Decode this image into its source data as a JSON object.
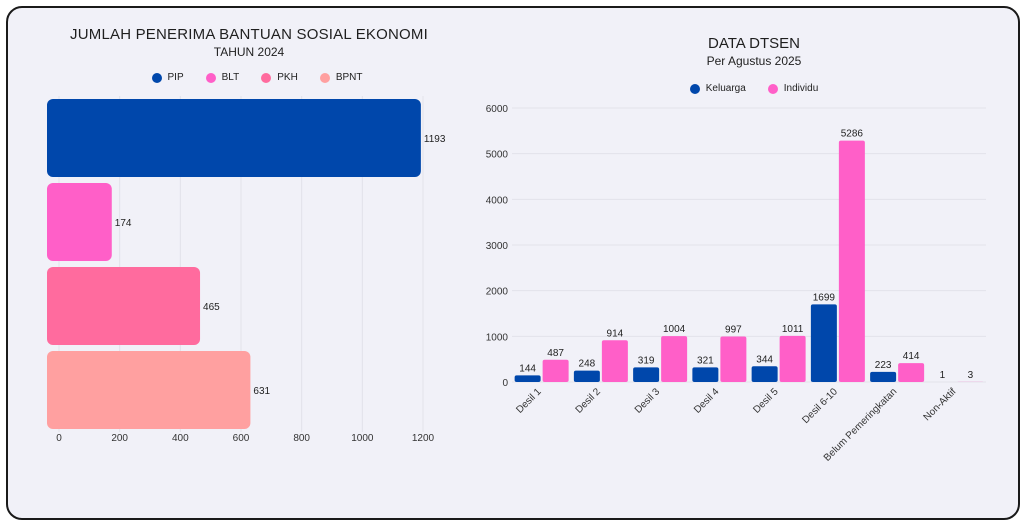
{
  "left_chart": {
    "title": "JUMLAH PENERIMA BANTUAN SOSIAL EKONOMI",
    "subtitle": "TAHUN 2024",
    "legend": [
      {
        "name": "PIP",
        "color": "#0047AB"
      },
      {
        "name": "BLT",
        "color": "#FF5FC8"
      },
      {
        "name": "PKH",
        "color": "#FF6B9E"
      },
      {
        "name": "BPNT",
        "color": "#FFA0A0"
      }
    ]
  },
  "right_chart": {
    "title": "DATA DTSEN",
    "subtitle": "Per Agustus 2025",
    "legend": [
      {
        "name": "Keluarga",
        "color": "#0047AB"
      },
      {
        "name": "Individu",
        "color": "#FF5FC8"
      }
    ]
  },
  "chart_data": [
    {
      "type": "bar",
      "orientation": "horizontal",
      "categories": [
        "PIP",
        "BLT",
        "PKH",
        "BPNT"
      ],
      "values": [
        1193,
        174,
        465,
        631
      ],
      "colors": [
        "#0047AB",
        "#FF5FC8",
        "#FF6B9E",
        "#FFA0A0"
      ],
      "xlim": [
        0,
        1200
      ],
      "xticks": [
        0,
        200,
        400,
        600,
        800,
        1000,
        1200
      ],
      "grid": true,
      "legend_position": "top"
    },
    {
      "type": "bar",
      "orientation": "vertical",
      "categories": [
        "Desil 1",
        "Desil 2",
        "Desil 3",
        "Desil 4",
        "Desil 5",
        "Desil 6-10",
        "Belum Pemeringkatan",
        "Non-Aktif"
      ],
      "series": [
        {
          "name": "Keluarga",
          "color": "#0047AB",
          "values": [
            144,
            248,
            319,
            321,
            344,
            1699,
            223,
            1
          ]
        },
        {
          "name": "Individu",
          "color": "#FF5FC8",
          "values": [
            487,
            914,
            1004,
            997,
            1011,
            5286,
            414,
            3
          ]
        }
      ],
      "ylim": [
        0,
        6000
      ],
      "yticks": [
        0,
        1000,
        2000,
        3000,
        4000,
        5000,
        6000
      ],
      "grid": true,
      "legend_position": "top"
    }
  ]
}
